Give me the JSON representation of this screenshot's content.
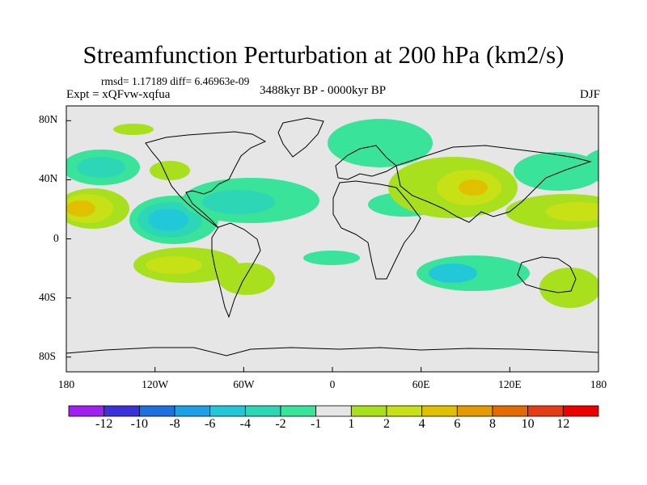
{
  "title": "Streamfunction Perturbation at 200 hPa (km2/s)",
  "stats": "rmsd= 1.17189  diff= 6.46963e-09",
  "experiment": "Expt = xQFvw-xqfua",
  "period": "3488kyr BP - 0000kyr BP",
  "season": "DJF",
  "axes": {
    "y_ticks": [
      {
        "value": 80,
        "label": "80N"
      },
      {
        "value": 40,
        "label": "40N"
      },
      {
        "value": 0,
        "label": "0"
      },
      {
        "value": -40,
        "label": "40S"
      },
      {
        "value": -80,
        "label": "80S"
      }
    ],
    "x_ticks": [
      {
        "value": -180,
        "label": "180"
      },
      {
        "value": -120,
        "label": "120W"
      },
      {
        "value": -60,
        "label": "60W"
      },
      {
        "value": 0,
        "label": "0"
      },
      {
        "value": 60,
        "label": "60E"
      },
      {
        "value": 120,
        "label": "120E"
      },
      {
        "value": 180,
        "label": "180"
      }
    ]
  },
  "colorbar": {
    "labels": [
      "-12",
      "-10",
      "-8",
      "-6",
      "-4",
      "-2",
      "-1",
      "1",
      "2",
      "4",
      "6",
      "8",
      "10",
      "12"
    ],
    "colors": [
      "#a020f0",
      "#3a32d8",
      "#1e6fe0",
      "#1ea0e8",
      "#23c8d8",
      "#2dd6b4",
      "#3ae39a",
      "#e6e6e6",
      "#a8e01e",
      "#c8e016",
      "#e0c000",
      "#e49a00",
      "#e46a00",
      "#e63c14",
      "#ee0000"
    ]
  },
  "map": {
    "background_color": "#e6e6e6",
    "coast_color": "#000000"
  }
}
